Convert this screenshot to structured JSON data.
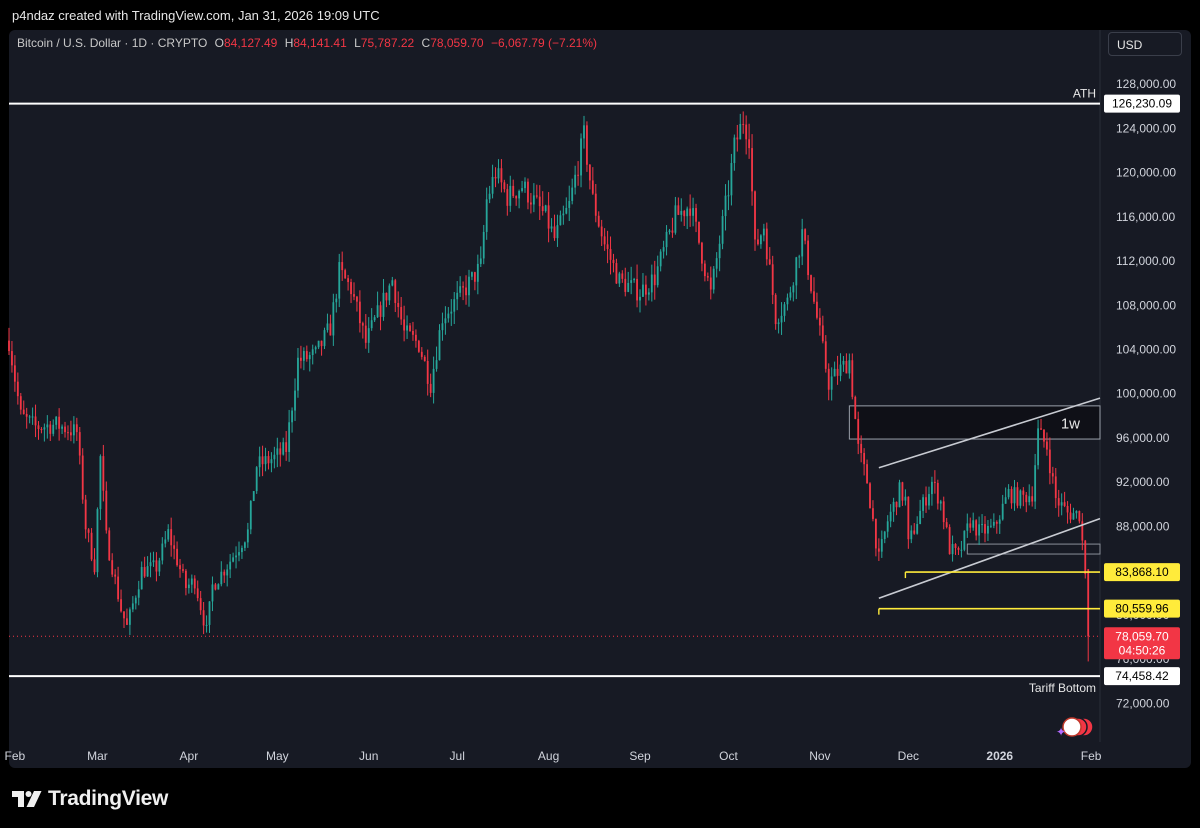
{
  "header": {
    "text": "p4ndaz created with TradingView.com, Jan 31, 2026 19:09 UTC"
  },
  "legend": {
    "symbol": "Bitcoin / U.S. Dollar · 1D · CRYPTO",
    "o_label": "O",
    "o": "84,127.49",
    "h_label": "H",
    "h": "84,141.41",
    "l_label": "L",
    "l": "75,787.22",
    "c_label": "C",
    "c": "78,059.70",
    "change": "−6,067.79 (−7.21%)"
  },
  "currency": "USD",
  "brand": {
    "name": "TradingView"
  },
  "colors": {
    "up": "#26a69a",
    "down": "#f23645",
    "background": "#171a24",
    "level": "#ffeb3b",
    "ath_line": "#ffffff"
  },
  "chart_data": {
    "type": "candlestick",
    "title": "Bitcoin / U.S. Dollar · 1D · CRYPTO",
    "ylim": [
      68500,
      130000
    ],
    "y_ticks": [
      72000,
      76000,
      80000,
      84000,
      88000,
      92000,
      96000,
      100000,
      104000,
      108000,
      112000,
      116000,
      120000,
      124000,
      128000
    ],
    "y_tick_labels": [
      "72,000.00",
      "76,000.00",
      "80,000.00",
      "84,000.00",
      "88,000.00",
      "92,000.00",
      "96,000.00",
      "100,000.00",
      "104,000.00",
      "108,000.00",
      "112,000.00",
      "116,000.00",
      "120,000.00",
      "124,000.00",
      "128,000.00"
    ],
    "x_range": [
      "2025-01-30",
      "2026-02-04"
    ],
    "x_ticks": [
      {
        "date": "2025-02-01",
        "label": "Feb",
        "bold": false
      },
      {
        "date": "2025-03-01",
        "label": "Mar",
        "bold": false
      },
      {
        "date": "2025-04-01",
        "label": "Apr",
        "bold": false
      },
      {
        "date": "2025-05-01",
        "label": "May",
        "bold": false
      },
      {
        "date": "2025-06-01",
        "label": "Jun",
        "bold": false
      },
      {
        "date": "2025-07-01",
        "label": "Jul",
        "bold": false
      },
      {
        "date": "2025-08-01",
        "label": "Aug",
        "bold": false
      },
      {
        "date": "2025-09-01",
        "label": "Sep",
        "bold": false
      },
      {
        "date": "2025-10-01",
        "label": "Oct",
        "bold": false
      },
      {
        "date": "2025-11-01",
        "label": "Nov",
        "bold": false
      },
      {
        "date": "2025-12-01",
        "label": "Dec",
        "bold": false
      },
      {
        "date": "2026-01-01",
        "label": "2026",
        "bold": true
      },
      {
        "date": "2026-02-01",
        "label": "Feb",
        "bold": false
      }
    ],
    "close_path": [
      [
        "2025-01-30",
        104800
      ],
      [
        "2025-02-03",
        98000
      ],
      [
        "2025-02-08",
        97000
      ],
      [
        "2025-02-15",
        97200
      ],
      [
        "2025-02-22",
        96500
      ],
      [
        "2025-02-25",
        88000
      ],
      [
        "2025-02-28",
        84500
      ],
      [
        "2025-03-02",
        94200
      ],
      [
        "2025-03-04",
        87000
      ],
      [
        "2025-03-09",
        80500
      ],
      [
        "2025-03-11",
        78900
      ],
      [
        "2025-03-16",
        84000
      ],
      [
        "2025-03-21",
        84300
      ],
      [
        "2025-03-25",
        87400
      ],
      [
        "2025-03-31",
        82500
      ],
      [
        "2025-04-03",
        83100
      ],
      [
        "2025-04-07",
        78500
      ],
      [
        "2025-04-09",
        82600
      ],
      [
        "2025-04-14",
        84500
      ],
      [
        "2025-04-21",
        87500
      ],
      [
        "2025-04-24",
        93500
      ],
      [
        "2025-04-30",
        94200
      ],
      [
        "2025-05-04",
        95000
      ],
      [
        "2025-05-08",
        103000
      ],
      [
        "2025-05-14",
        103500
      ],
      [
        "2025-05-19",
        106000
      ],
      [
        "2025-05-22",
        111000
      ],
      [
        "2025-05-26",
        109500
      ],
      [
        "2025-05-31",
        104600
      ],
      [
        "2025-06-09",
        110300
      ],
      [
        "2025-06-13",
        105500
      ],
      [
        "2025-06-18",
        104500
      ],
      [
        "2025-06-22",
        100900
      ],
      [
        "2025-06-26",
        107000
      ],
      [
        "2025-07-02",
        108800
      ],
      [
        "2025-07-09",
        111500
      ],
      [
        "2025-07-11",
        117500
      ],
      [
        "2025-07-14",
        120000
      ],
      [
        "2025-07-18",
        117800
      ],
      [
        "2025-07-23",
        118800
      ],
      [
        "2025-07-31",
        116000
      ],
      [
        "2025-08-03",
        114000
      ],
      [
        "2025-08-08",
        117000
      ],
      [
        "2025-08-13",
        123300
      ],
      [
        "2025-08-16",
        117500
      ],
      [
        "2025-08-20",
        113500
      ],
      [
        "2025-08-25",
        110200
      ],
      [
        "2025-09-01",
        109200
      ],
      [
        "2025-09-06",
        110500
      ],
      [
        "2025-09-13",
        116000
      ],
      [
        "2025-09-18",
        117100
      ],
      [
        "2025-09-22",
        112600
      ],
      [
        "2025-09-25",
        109000
      ],
      [
        "2025-10-01",
        118500
      ],
      [
        "2025-10-03",
        122300
      ],
      [
        "2025-10-06",
        124800
      ],
      [
        "2025-10-08",
        123300
      ],
      [
        "2025-10-10",
        113100
      ],
      [
        "2025-10-13",
        115200
      ],
      [
        "2025-10-17",
        107000
      ],
      [
        "2025-10-21",
        108300
      ],
      [
        "2025-10-26",
        114500
      ],
      [
        "2025-10-30",
        108300
      ],
      [
        "2025-11-04",
        101000
      ],
      [
        "2025-11-08",
        102200
      ],
      [
        "2025-11-11",
        103000
      ],
      [
        "2025-11-14",
        95000
      ],
      [
        "2025-11-17",
        92100
      ],
      [
        "2025-11-21",
        85000
      ],
      [
        "2025-11-24",
        88500
      ],
      [
        "2025-11-28",
        91200
      ],
      [
        "2025-11-30",
        90400
      ],
      [
        "2025-12-01",
        86300
      ],
      [
        "2025-12-05",
        89300
      ],
      [
        "2025-12-09",
        92000
      ],
      [
        "2025-12-12",
        90200
      ],
      [
        "2025-12-15",
        86000
      ],
      [
        "2025-12-18",
        85300
      ],
      [
        "2025-12-22",
        88500
      ],
      [
        "2025-12-25",
        87500
      ],
      [
        "2025-12-30",
        87800
      ],
      [
        "2026-01-04",
        91000
      ],
      [
        "2026-01-08",
        90500
      ],
      [
        "2026-01-12",
        91000
      ],
      [
        "2026-01-14",
        96500
      ],
      [
        "2026-01-17",
        95200
      ],
      [
        "2026-01-20",
        90500
      ],
      [
        "2026-01-24",
        89200
      ],
      [
        "2026-01-28",
        89100
      ],
      [
        "2026-01-30",
        84127.49
      ],
      [
        "2026-01-31",
        78059.7
      ]
    ],
    "last_candle": {
      "date": "2026-01-31",
      "open": 84127.49,
      "high": 84141.41,
      "low": 75787.22,
      "close": 78059.7
    },
    "annotations": {
      "ath": {
        "label": "ATH",
        "price": 126230.09,
        "price_label": "126,230.09",
        "from": "2025-01-30",
        "to": "2026-02-04",
        "color": "#ffffff"
      },
      "tariff_bottom": {
        "label": "Tariff Bottom",
        "price": 74458.42,
        "price_label": "74,458.42",
        "from": "2025-01-30",
        "to": "2026-02-04",
        "color": "#ffffff"
      },
      "level_1": {
        "price": 83868.1,
        "price_label": "83,868.10",
        "from": "2025-11-30",
        "to": "2026-02-04",
        "color": "#ffeb3b"
      },
      "level_2": {
        "price": 80559.96,
        "price_label": "80,559.96",
        "from": "2025-11-21",
        "to": "2026-02-04",
        "color": "#ffeb3b"
      },
      "last_price": {
        "price_label": "78,059.70",
        "countdown": "04:50:26",
        "color": "#f23645"
      },
      "weekly_box": {
        "label": "1w",
        "from": "2025-11-11",
        "to": "2026-02-04",
        "top": 98900,
        "bottom": 95900
      },
      "channel_upper": {
        "points": [
          [
            "2025-11-21",
            93300
          ],
          [
            "2026-02-04",
            99600
          ]
        ]
      },
      "channel_lower": {
        "points": [
          [
            "2025-11-21",
            81500
          ],
          [
            "2026-02-04",
            88700
          ]
        ]
      },
      "range_box": {
        "from": "2025-12-21",
        "to": "2026-02-04",
        "top": 86400,
        "bottom": 85500
      }
    }
  }
}
